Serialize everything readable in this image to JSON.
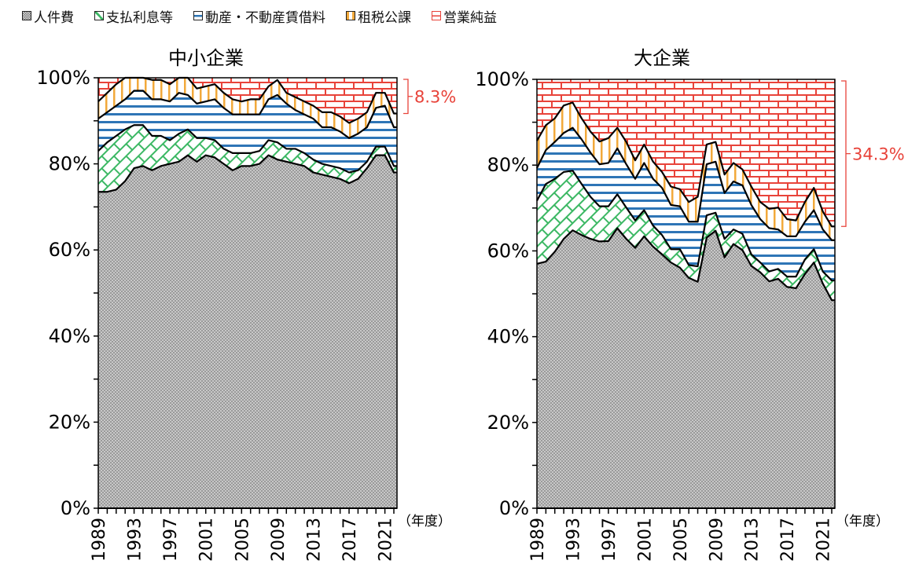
{
  "legend": [
    {
      "label": "人件費",
      "pattern": "gray-checker",
      "color": "#9a9a9a"
    },
    {
      "label": "支払利息等",
      "pattern": "green-crosshatch",
      "color": "#3cb864"
    },
    {
      "label": "動産・不動産賃借料",
      "pattern": "blue-horizontal-stripes",
      "color": "#2e75b6"
    },
    {
      "label": "租税公課",
      "pattern": "orange-vertical-stripes",
      "color": "#f2a93b"
    },
    {
      "label": "営業純益",
      "pattern": "red-bricks",
      "color": "#e8433a"
    }
  ],
  "chart_data": [
    {
      "type": "area",
      "stacked": true,
      "title": "中小企業",
      "xlabel": "（年度）",
      "ylabel": "",
      "ylim": [
        0,
        100
      ],
      "yticks": [
        "0%",
        "20%",
        "40%",
        "60%",
        "80%",
        "100%"
      ],
      "xtick_labels": [
        "1989",
        "1993",
        "1997",
        "2001",
        "2005",
        "2009",
        "2013",
        "2017",
        "2021"
      ],
      "x": [
        1989,
        1990,
        1991,
        1992,
        1993,
        1994,
        1995,
        1996,
        1997,
        1998,
        1999,
        2000,
        2001,
        2002,
        2003,
        2004,
        2005,
        2006,
        2007,
        2008,
        2009,
        2010,
        2011,
        2012,
        2013,
        2014,
        2015,
        2016,
        2017,
        2018,
        2019,
        2020,
        2021,
        2022
      ],
      "series": [
        {
          "name": "人件費",
          "values": [
            73.5,
            73.5,
            74,
            76,
            79,
            79.5,
            78.5,
            79.5,
            80,
            80.5,
            82,
            80.5,
            82,
            81.5,
            80,
            78.5,
            79.5,
            79.5,
            80,
            82,
            81,
            80.5,
            80,
            79.5,
            78,
            77.5,
            77,
            76.5,
            75.5,
            76.5,
            79,
            82,
            82,
            78
          ]
        },
        {
          "name": "支払利息等",
          "values": [
            9.5,
            11.5,
            12.5,
            12,
            10,
            9.5,
            8,
            7,
            5.5,
            6.5,
            6,
            5.5,
            4,
            4,
            3.5,
            4,
            3,
            3,
            3,
            3.5,
            4,
            3,
            3.5,
            3,
            3,
            2.5,
            2.5,
            2.5,
            2.5,
            2,
            1.5,
            2,
            2,
            1.5
          ]
        },
        {
          "name": "動産・不動産賃借料",
          "values": [
            7.5,
            7,
            7,
            7,
            8,
            8,
            8.5,
            8.5,
            9,
            9.5,
            8,
            8,
            8.5,
            9.5,
            9.5,
            9,
            9,
            9,
            8.5,
            9.5,
            11,
            10.5,
            9,
            9,
            9.5,
            8.5,
            9,
            8.5,
            8,
            8.5,
            8,
            9,
            9.5,
            9
          ]
        },
        {
          "name": "租税公課",
          "values": [
            4,
            4.5,
            5,
            5,
            3,
            3,
            4.5,
            4.5,
            4,
            3.5,
            4,
            3.5,
            3.5,
            3.5,
            3.5,
            3.5,
            3,
            3.5,
            3.5,
            3,
            3.5,
            2.5,
            3,
            3,
            3,
            3.5,
            3.5,
            3.5,
            3.5,
            3.5,
            3.5,
            3.5,
            3,
            3.2
          ]
        },
        {
          "name": "営業純益",
          "values": [
            5.5,
            3.5,
            1.5,
            0,
            0,
            0,
            0.5,
            0.5,
            1.5,
            0,
            0,
            2.5,
            2,
            1.5,
            3.5,
            5,
            5.5,
            5,
            5,
            2,
            0.5,
            3.5,
            4.5,
            5.5,
            6.5,
            8,
            8,
            9,
            10.5,
            9.5,
            8,
            3.5,
            3.5,
            8.3
          ]
        }
      ],
      "annotation": {
        "text": "8.3%",
        "series": "営業純益",
        "year": 2022,
        "color": "#e8433a"
      }
    },
    {
      "type": "area",
      "stacked": true,
      "title": "大企業",
      "xlabel": "（年度）",
      "ylabel": "",
      "ylim": [
        0,
        100
      ],
      "yticks": [
        "0%",
        "20%",
        "40%",
        "60%",
        "80%",
        "100%"
      ],
      "xtick_labels": [
        "1989",
        "1993",
        "1997",
        "2001",
        "2005",
        "2009",
        "2013",
        "2017",
        "2021"
      ],
      "x": [
        1989,
        1990,
        1991,
        1992,
        1993,
        1994,
        1995,
        1996,
        1997,
        1998,
        1999,
        2000,
        2001,
        2002,
        2003,
        2004,
        2005,
        2006,
        2007,
        2008,
        2009,
        2010,
        2011,
        2012,
        2013,
        2014,
        2015,
        2016,
        2017,
        2018,
        2019,
        2020,
        2021,
        2022
      ],
      "series": [
        {
          "name": "人件費",
          "values": [
            57.0,
            57.5,
            59.8,
            62.8,
            64.8,
            63.7,
            62.8,
            62.2,
            62.3,
            65.3,
            62.8,
            60.7,
            63.4,
            61.0,
            59.2,
            57.3,
            56.1,
            53.7,
            52.8,
            63.1,
            64.7,
            58.5,
            61.6,
            60.2,
            56.5,
            55.0,
            52.9,
            53.5,
            51.6,
            51.3,
            54.6,
            57.3,
            52.4,
            48.5
          ]
        },
        {
          "name": "支払利息等",
          "values": [
            14.7,
            18.1,
            17.0,
            15.6,
            13.9,
            11.9,
            9.8,
            8.2,
            8.1,
            7.9,
            7.3,
            6.4,
            6.1,
            4.9,
            4.5,
            3.1,
            4.3,
            3.0,
            3.6,
            5.2,
            4.2,
            4.3,
            3.4,
            3.8,
            2.7,
            2.3,
            2.3,
            2.3,
            2.4,
            2.7,
            3.4,
            3.1,
            2.8,
            4.6
          ]
        },
        {
          "name": "動産・不動産賃借料",
          "values": [
            7.6,
            7.9,
            8.6,
            9.1,
            10.0,
            10.4,
            10.3,
            9.8,
            10.1,
            10.7,
            10.1,
            9.7,
            11.0,
            10.9,
            11.0,
            10.3,
            10.0,
            10.1,
            10.4,
            11.9,
            11.9,
            10.7,
            11.2,
            11.3,
            11.5,
            10.1,
            10.1,
            9.2,
            9.4,
            9.4,
            8.8,
            9.1,
            9.8,
            9.4
          ]
        },
        {
          "name": "租税公課",
          "values": [
            6.4,
            5.8,
            5.5,
            6.4,
            5.9,
            4.9,
            4.9,
            5.3,
            5.8,
            4.8,
            5.2,
            4.3,
            4.3,
            4.0,
            3.7,
            4.3,
            4.0,
            4.6,
            5.8,
            4.6,
            4.6,
            4.3,
            4.3,
            3.7,
            4.3,
            4.0,
            4.5,
            5.1,
            4.0,
            3.7,
            4.6,
            5.2,
            4.2,
            3.2
          ]
        },
        {
          "name": "営業純益",
          "values": [
            14.3,
            10.7,
            9.1,
            6.1,
            5.4,
            9.1,
            12.2,
            14.5,
            13.7,
            11.3,
            14.6,
            18.9,
            15.2,
            19.2,
            21.6,
            25.0,
            25.6,
            28.6,
            27.4,
            15.2,
            14.6,
            22.2,
            19.5,
            21.0,
            25.0,
            28.6,
            30.2,
            29.9,
            32.6,
            32.9,
            28.6,
            25.3,
            30.8,
            34.3
          ]
        }
      ],
      "annotation": {
        "text": "34.3%",
        "series": "営業純益",
        "year": 2022,
        "color": "#e8433a"
      }
    }
  ]
}
